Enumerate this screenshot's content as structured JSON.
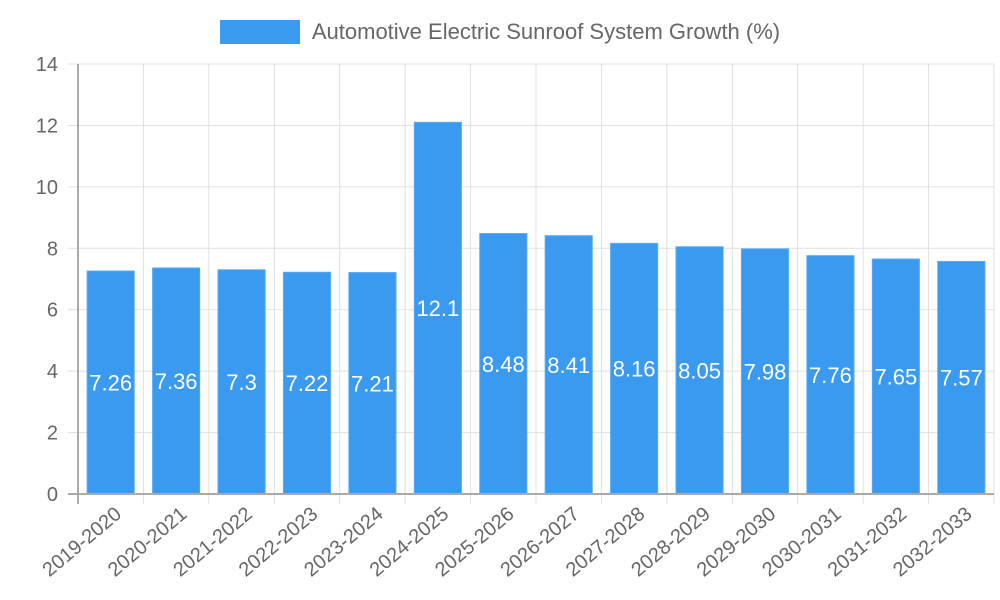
{
  "legend": {
    "label": "Automotive Electric Sunroof System Growth (%)",
    "color": "#3a9af0"
  },
  "colors": {
    "bar": "#3a9af0",
    "bar_label": "#ffffff",
    "grid": "#e0e0e0",
    "axis": "#aaaaaa",
    "tick_text": "#666666"
  },
  "chart_data": {
    "type": "bar",
    "title": "",
    "xlabel": "",
    "ylabel": "",
    "legend": [
      "Automotive Electric Sunroof System Growth (%)"
    ],
    "legend_position": "top",
    "grid": true,
    "ylim": [
      0,
      14
    ],
    "yticks": [
      0,
      2,
      4,
      6,
      8,
      10,
      12,
      14
    ],
    "categories": [
      "2019-2020",
      "2020-2021",
      "2021-2022",
      "2022-2023",
      "2023-2024",
      "2024-2025",
      "2025-2026",
      "2026-2027",
      "2027-2028",
      "2028-2029",
      "2029-2030",
      "2030-2031",
      "2031-2032",
      "2032-2033"
    ],
    "series": [
      {
        "name": "Automotive Electric Sunroof System Growth (%)",
        "values": [
          7.26,
          7.36,
          7.3,
          7.22,
          7.21,
          12.1,
          8.48,
          8.41,
          8.16,
          8.05,
          7.98,
          7.76,
          7.65,
          7.57
        ],
        "data_labels": [
          "7.26",
          "7.36",
          "7.3",
          "7.22",
          "7.21",
          "12.1",
          "8.48",
          "8.41",
          "8.16",
          "8.05",
          "7.98",
          "7.76",
          "7.65",
          "7.57"
        ]
      }
    ]
  }
}
